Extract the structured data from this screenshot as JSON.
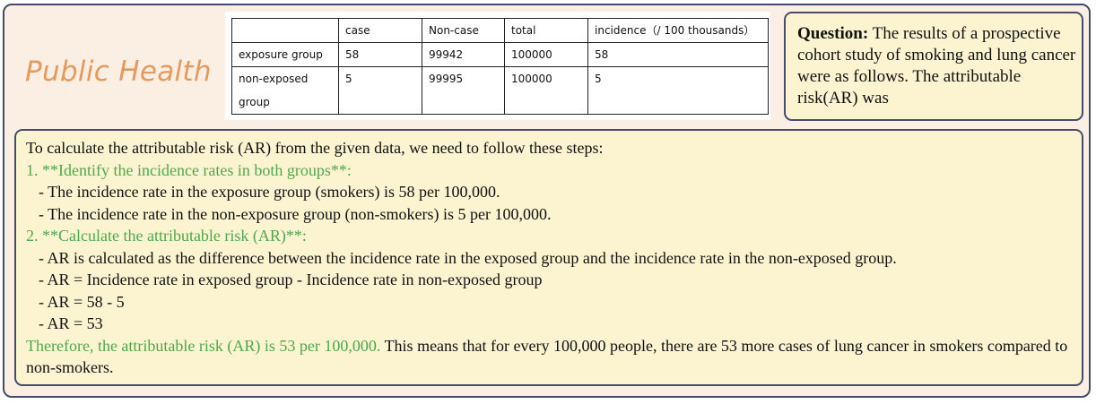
{
  "category": "Public Health",
  "table": {
    "headers": [
      "",
      "case",
      "Non-case",
      "total",
      "incidence（/ 100 thousands）"
    ],
    "rows": [
      [
        "exposure group",
        "58",
        "99942",
        "100000",
        "58"
      ],
      [
        "non-exposed group",
        "5",
        "99995",
        "100000",
        "5"
      ]
    ]
  },
  "question": {
    "label": "Question:",
    "text": " The results of a prospective cohort study of smoking and lung cancer were as follows. The attributable risk(AR) was"
  },
  "answer": {
    "intro": "To calculate the attributable risk (AR) from the given data, we need to follow these steps:",
    "step1": "1. **Identify the incidence rates in both groups**:",
    "step1_items": [
      "- The incidence rate in the exposure group (smokers) is 58 per 100,000.",
      "- The incidence rate in the non-exposure group (non-smokers) is 5 per 100,000."
    ],
    "step2": "2. **Calculate the attributable risk (AR)**:",
    "step2_items": [
      "- AR is calculated as the difference between the incidence rate in the exposed group and the incidence rate in the non-exposed group.",
      "- AR = Incidence rate in exposed group - Incidence rate in non-exposed group",
      "- AR = 58 - 5",
      "- AR = 53"
    ],
    "conclusion_highlight": "Therefore, the attributable risk (AR) is 53 per 100,000.",
    "conclusion_rest": " This means that for every 100,000 people, there are 53 more cases of lung cancer in smokers compared to non-smokers."
  }
}
